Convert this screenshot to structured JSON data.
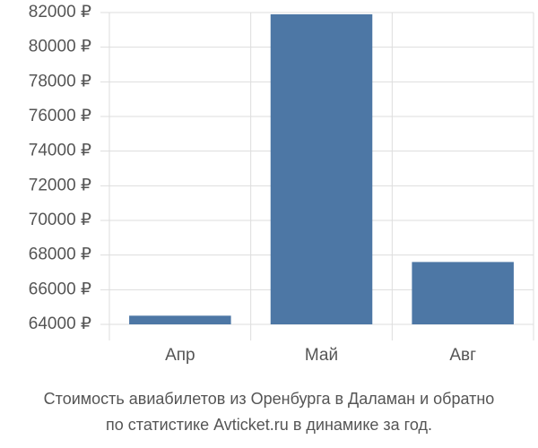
{
  "chart_data": {
    "type": "bar",
    "title": [
      "Стоимость авиабилетов из Оренбурга в Даламан и обратно",
      "по статистике Avticket.ru в динамике за год."
    ],
    "categories": [
      "Апр",
      "Май",
      "Авг"
    ],
    "values": [
      64500,
      81900,
      67600
    ],
    "color": "#4d77a5",
    "ylim": [
      64000,
      82000
    ],
    "yticks": [
      {
        "value": 64000,
        "label": "64000 ₽"
      },
      {
        "value": 66000,
        "label": "66000 ₽"
      },
      {
        "value": 68000,
        "label": "68000 ₽"
      },
      {
        "value": 70000,
        "label": "70000 ₽"
      },
      {
        "value": 72000,
        "label": "72000 ₽"
      },
      {
        "value": 74000,
        "label": "74000 ₽"
      },
      {
        "value": 76000,
        "label": "76000 ₽"
      },
      {
        "value": 78000,
        "label": "78000 ₽"
      },
      {
        "value": 80000,
        "label": "80000 ₽"
      },
      {
        "value": 82000,
        "label": "82000 ₽"
      }
    ],
    "grid": true
  }
}
